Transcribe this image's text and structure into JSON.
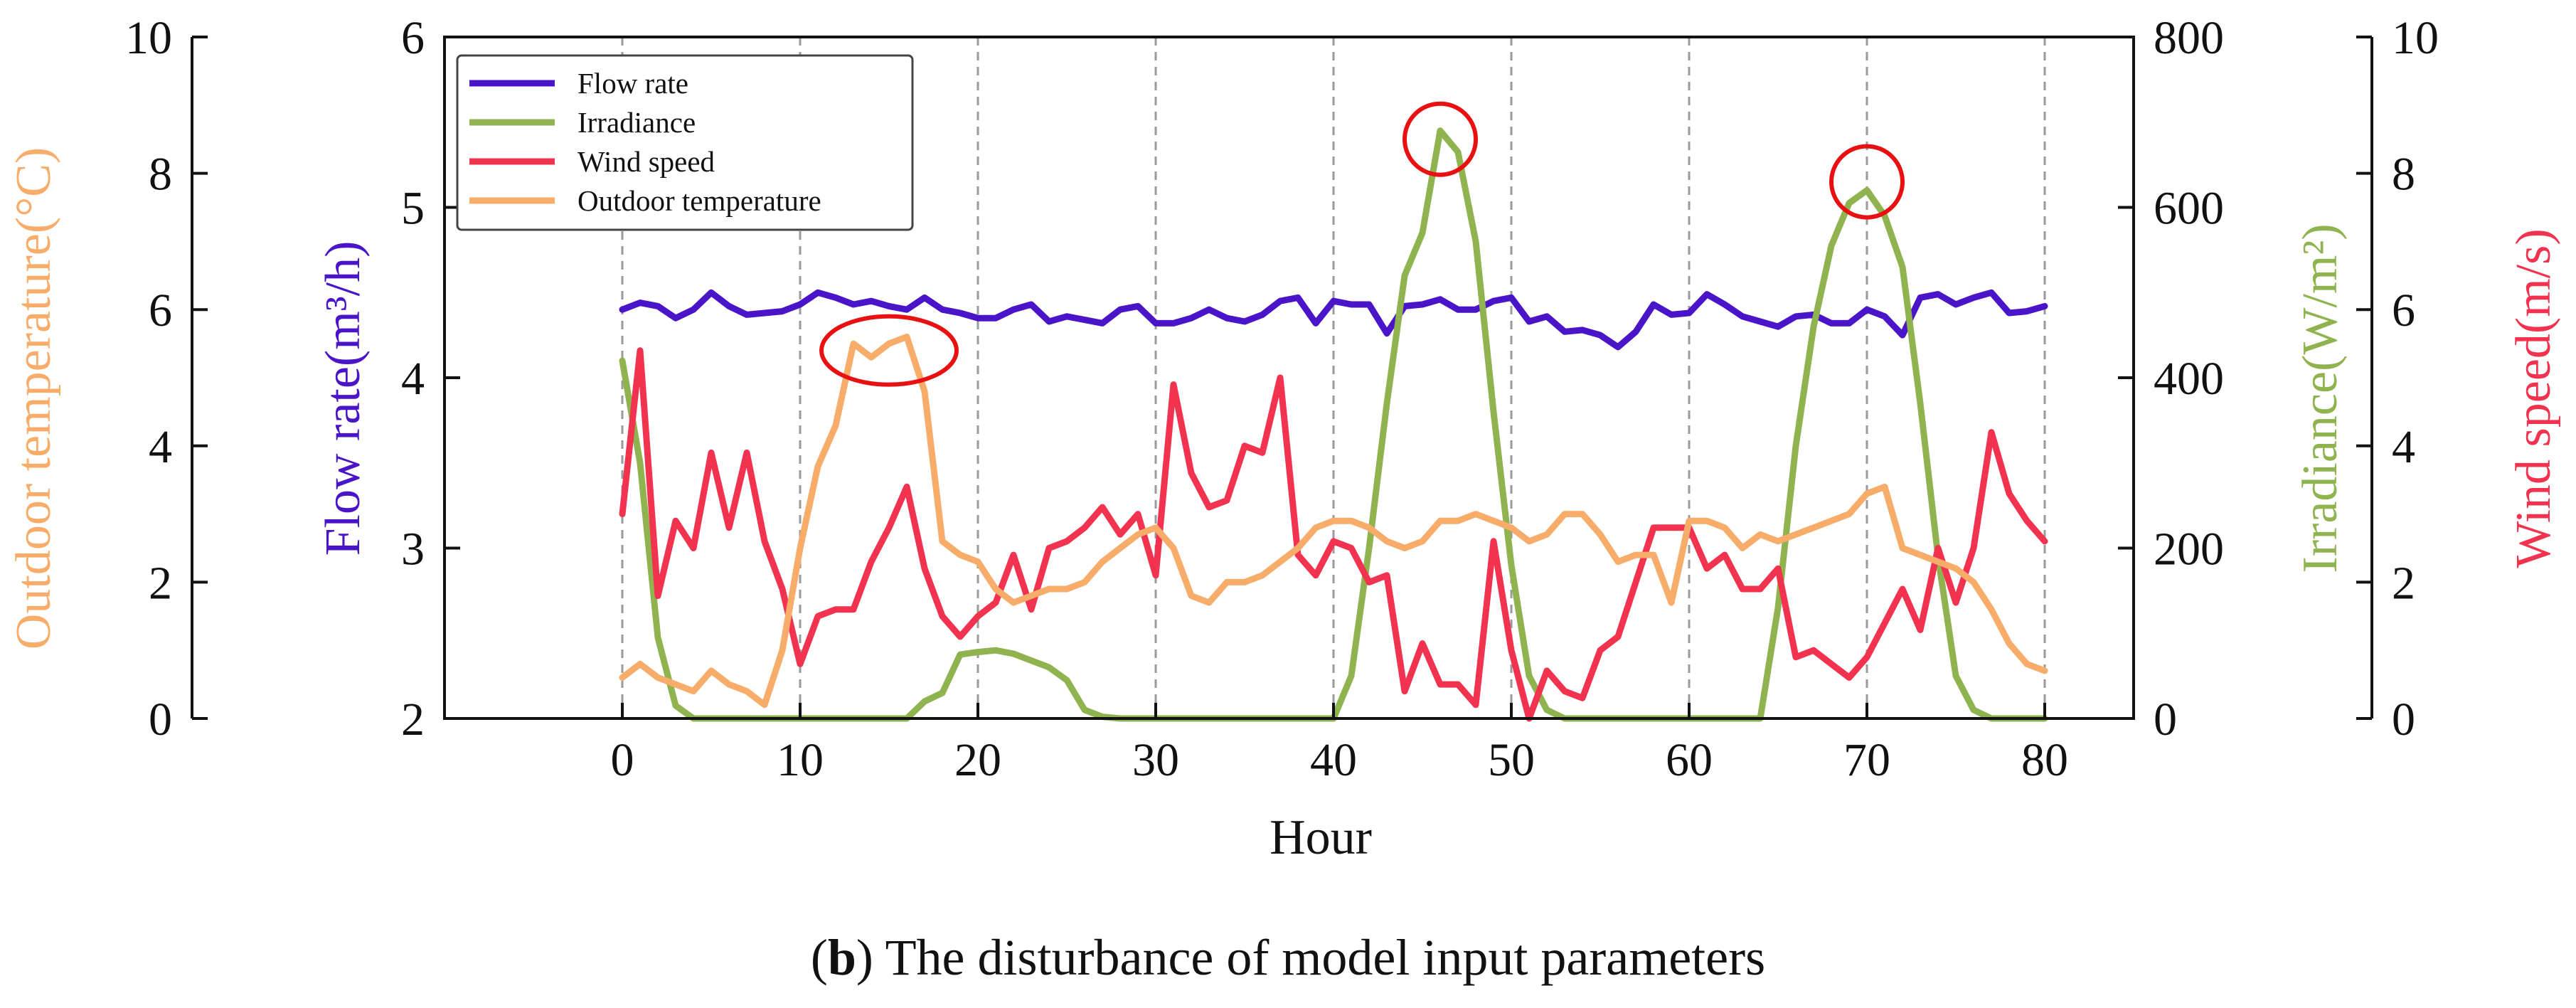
{
  "colors": {
    "flow": "#4a14c8",
    "irradiance": "#8fb34f",
    "wind": "#f2334f",
    "temperature": "#f7ac6a",
    "highlight": "#e81010",
    "axis": "#111111",
    "grid": "#9a9a9a"
  },
  "caption": {
    "label": "b",
    "text": "The disturbance of model input parameters"
  },
  "chart_data": {
    "type": "line",
    "xlabel": "Hour",
    "xlim": [
      -10,
      85
    ],
    "xticks": [
      0,
      10,
      20,
      30,
      40,
      50,
      60,
      70,
      80
    ],
    "grid": "vertical dashed at x ticks",
    "legend_position": "top-left",
    "axes": [
      {
        "id": "flow",
        "label": "Flow rate(m³/h)",
        "side": "left-inner",
        "range": [
          2,
          6
        ],
        "ticks": [
          2,
          3,
          4,
          5,
          6
        ]
      },
      {
        "id": "temperature",
        "label": "Outdoor temperature(°C)",
        "side": "left-outer",
        "range": [
          0,
          10
        ],
        "ticks": [
          0,
          2,
          4,
          6,
          8,
          10
        ]
      },
      {
        "id": "irradiance",
        "label": "Irradiance(W/m²)",
        "side": "right-inner",
        "range": [
          0,
          800
        ],
        "ticks": [
          0,
          200,
          400,
          600,
          800
        ]
      },
      {
        "id": "wind",
        "label": "Wind speed(m/s)",
        "side": "right-outer",
        "range": [
          0,
          10
        ],
        "ticks": [
          0,
          2,
          4,
          6,
          8,
          10
        ]
      }
    ],
    "series": [
      {
        "name": "Flow rate",
        "axis": "flow",
        "color": "#4a14c8",
        "x": [
          0,
          1,
          2,
          3,
          4,
          5,
          6,
          7,
          8,
          9,
          10,
          11,
          12,
          13,
          14,
          15,
          16,
          17,
          18,
          19,
          20,
          21,
          22,
          23,
          24,
          25,
          26,
          27,
          28,
          29,
          30,
          31,
          32,
          33,
          34,
          35,
          36,
          37,
          38,
          39,
          40,
          41,
          42,
          43,
          44,
          45,
          46,
          47,
          48,
          49,
          50,
          51,
          52,
          53,
          54,
          55,
          56,
          57,
          58,
          59,
          60,
          61,
          62,
          63,
          64,
          65,
          66,
          67,
          68,
          69,
          70,
          71,
          72,
          73,
          74,
          75,
          76,
          77,
          78,
          79,
          80
        ],
        "values": [
          4.4,
          4.44,
          4.42,
          4.35,
          4.4,
          4.5,
          4.42,
          4.37,
          4.38,
          4.39,
          4.43,
          4.5,
          4.47,
          4.43,
          4.45,
          4.42,
          4.4,
          4.47,
          4.4,
          4.38,
          4.35,
          4.35,
          4.4,
          4.43,
          4.33,
          4.36,
          4.34,
          4.32,
          4.4,
          4.42,
          4.32,
          4.32,
          4.35,
          4.4,
          4.35,
          4.33,
          4.37,
          4.45,
          4.47,
          4.32,
          4.45,
          4.43,
          4.43,
          4.26,
          4.42,
          4.43,
          4.46,
          4.4,
          4.4,
          4.45,
          4.47,
          4.33,
          4.36,
          4.27,
          4.28,
          4.25,
          4.18,
          4.27,
          4.43,
          4.37,
          4.38,
          4.49,
          4.43,
          4.36,
          4.33,
          4.3,
          4.36,
          4.37,
          4.32,
          4.32,
          4.4,
          4.36,
          4.25,
          4.47,
          4.49,
          4.43,
          4.47,
          4.5,
          4.38,
          4.39,
          4.42
        ]
      },
      {
        "name": "Irradiance",
        "axis": "irradiance",
        "color": "#8fb34f",
        "x": [
          0,
          1,
          2,
          3,
          4,
          5,
          15,
          16,
          17,
          18,
          19,
          20,
          21,
          22,
          23,
          24,
          25,
          26,
          27,
          28,
          40,
          41,
          42,
          43,
          44,
          45,
          46,
          47,
          48,
          49,
          50,
          51,
          52,
          53,
          63,
          64,
          65,
          66,
          67,
          68,
          69,
          70,
          71,
          72,
          73,
          74,
          75,
          76,
          77,
          78,
          80
        ],
        "values": [
          420,
          300,
          95,
          15,
          0,
          0,
          0,
          0,
          20,
          30,
          75,
          78,
          80,
          76,
          68,
          60,
          45,
          10,
          2,
          0,
          0,
          50,
          200,
          370,
          520,
          570,
          690,
          665,
          560,
          360,
          180,
          50,
          10,
          0,
          0,
          0,
          130,
          320,
          460,
          555,
          605,
          620,
          590,
          530,
          370,
          190,
          50,
          10,
          0,
          0,
          0
        ]
      },
      {
        "name": "Wind speed",
        "axis": "wind",
        "color": "#f2334f",
        "x": [
          0,
          1,
          2,
          3,
          4,
          5,
          6,
          7,
          8,
          9,
          10,
          11,
          12,
          13,
          14,
          15,
          16,
          17,
          18,
          19,
          20,
          21,
          22,
          23,
          24,
          25,
          26,
          27,
          28,
          29,
          30,
          31,
          32,
          33,
          34,
          35,
          36,
          37,
          38,
          39,
          40,
          41,
          42,
          43,
          44,
          45,
          46,
          47,
          48,
          49,
          50,
          51,
          52,
          53,
          54,
          55,
          56,
          57,
          58,
          59,
          60,
          61,
          62,
          63,
          64,
          65,
          66,
          67,
          68,
          69,
          70,
          71,
          72,
          73,
          74,
          75,
          76,
          77,
          78,
          79,
          80
        ],
        "values": [
          3.0,
          5.4,
          1.8,
          2.9,
          2.5,
          3.9,
          2.8,
          3.9,
          2.6,
          1.9,
          0.8,
          1.5,
          1.6,
          1.6,
          2.3,
          2.8,
          3.4,
          2.2,
          1.5,
          1.2,
          1.5,
          1.7,
          2.4,
          1.6,
          2.5,
          2.6,
          2.8,
          3.1,
          2.7,
          3.0,
          2.1,
          4.9,
          3.6,
          3.1,
          3.2,
          4.0,
          3.9,
          5.0,
          2.4,
          2.1,
          2.6,
          2.5,
          2.0,
          2.1,
          0.4,
          1.1,
          0.5,
          0.5,
          0.2,
          2.6,
          1.0,
          0.0,
          0.7,
          0.4,
          0.3,
          1.0,
          1.2,
          2.0,
          2.8,
          2.8,
          2.8,
          2.2,
          2.4,
          1.9,
          1.9,
          2.2,
          0.9,
          1.0,
          0.8,
          0.6,
          0.9,
          1.4,
          1.9,
          1.3,
          2.5,
          1.7,
          2.5,
          4.2,
          3.3,
          2.9,
          2.6
        ]
      },
      {
        "name": "Outdoor temperature",
        "axis": "temperature",
        "color": "#f7ac6a",
        "x": [
          0,
          1,
          2,
          3,
          4,
          5,
          6,
          7,
          8,
          9,
          10,
          11,
          12,
          13,
          14,
          15,
          16,
          17,
          18,
          19,
          20,
          21,
          22,
          23,
          24,
          25,
          26,
          27,
          28,
          29,
          30,
          31,
          32,
          33,
          34,
          35,
          36,
          37,
          38,
          39,
          40,
          41,
          42,
          43,
          44,
          45,
          46,
          47,
          48,
          49,
          50,
          51,
          52,
          53,
          54,
          55,
          56,
          57,
          58,
          59,
          60,
          61,
          62,
          63,
          64,
          65,
          66,
          67,
          68,
          69,
          70,
          71,
          72,
          73,
          74,
          75,
          76,
          77,
          78,
          79,
          80
        ],
        "values": [
          0.6,
          0.8,
          0.6,
          0.5,
          0.4,
          0.7,
          0.5,
          0.4,
          0.2,
          1.0,
          2.5,
          3.7,
          4.3,
          5.5,
          5.3,
          5.5,
          5.6,
          4.8,
          2.6,
          2.4,
          2.3,
          1.9,
          1.7,
          1.8,
          1.9,
          1.9,
          2.0,
          2.3,
          2.5,
          2.7,
          2.8,
          2.5,
          1.8,
          1.7,
          2.0,
          2.0,
          2.1,
          2.3,
          2.5,
          2.8,
          2.9,
          2.9,
          2.8,
          2.6,
          2.5,
          2.6,
          2.9,
          2.9,
          3.0,
          2.9,
          2.8,
          2.6,
          2.7,
          3.0,
          3.0,
          2.7,
          2.3,
          2.4,
          2.4,
          1.7,
          2.9,
          2.9,
          2.8,
          2.5,
          2.7,
          2.6,
          2.7,
          2.8,
          2.9,
          3.0,
          3.3,
          3.4,
          2.5,
          2.4,
          2.3,
          2.2,
          2.0,
          1.6,
          1.1,
          0.8,
          0.7
        ]
      }
    ],
    "annotations": [
      {
        "type": "ellipse",
        "x": 15,
        "y": 5.4,
        "axis": "temperature"
      },
      {
        "type": "circle",
        "x": 46,
        "y": 680,
        "axis": "irradiance"
      },
      {
        "type": "circle",
        "x": 70,
        "y": 630,
        "axis": "irradiance"
      }
    ]
  }
}
